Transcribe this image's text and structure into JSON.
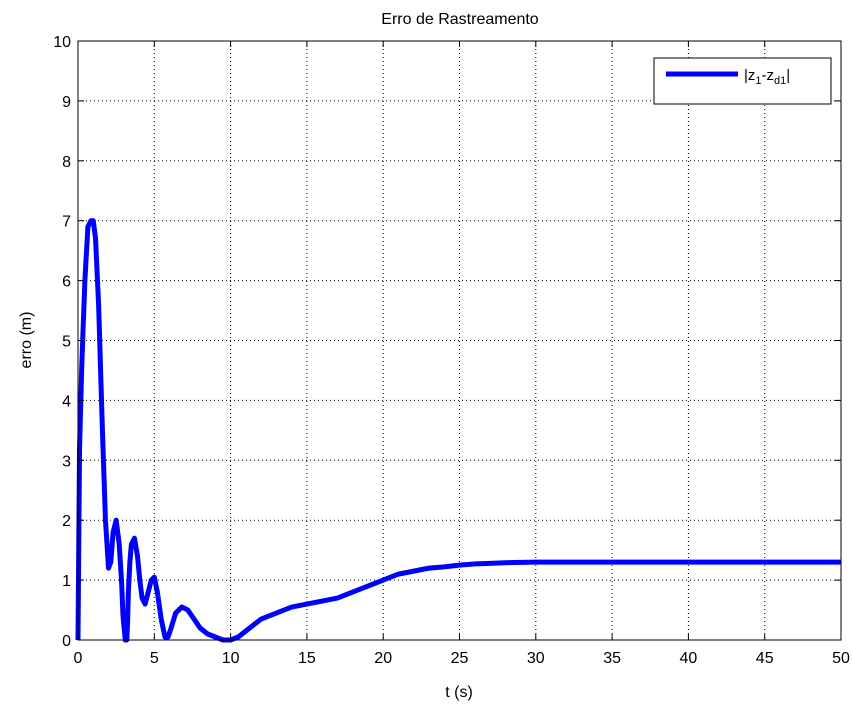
{
  "chart_data": {
    "type": "line",
    "title": "Erro de Rastreamento",
    "xlabel": "t (s)",
    "ylabel": "erro (m)",
    "xlim": [
      0,
      50
    ],
    "ylim": [
      0,
      10
    ],
    "xticks": [
      0,
      5,
      10,
      15,
      20,
      25,
      30,
      35,
      40,
      45,
      50
    ],
    "yticks": [
      0,
      1,
      2,
      3,
      4,
      5,
      6,
      7,
      8,
      9,
      10
    ],
    "grid": true,
    "legend_position": "top-right",
    "series": [
      {
        "name": "|z1-zd1|",
        "label_parts": {
          "main1": "z",
          "sub1": "1",
          "dash": "-",
          "main2": "z",
          "sub2": "d1"
        },
        "color": "#0000ff",
        "x": [
          0,
          0.1,
          0.25,
          0.45,
          0.65,
          0.85,
          1.0,
          1.15,
          1.35,
          1.6,
          1.8,
          2.0,
          2.15,
          2.3,
          2.5,
          2.7,
          2.85,
          2.95,
          3.1,
          3.2,
          3.25,
          3.3,
          3.4,
          3.5,
          3.7,
          3.9,
          4.05,
          4.2,
          4.4,
          4.6,
          4.8,
          5.0,
          5.2,
          5.45,
          5.7,
          5.9,
          6.1,
          6.4,
          6.8,
          7.2,
          7.6,
          8.0,
          8.5,
          9.0,
          9.5,
          10.0,
          10.5,
          11.0,
          11.5,
          12.0,
          13.0,
          14.0,
          15.0,
          16.0,
          17.0,
          18.0,
          19.0,
          20.0,
          21.0,
          22.0,
          23.0,
          24.0,
          25.0,
          26.0,
          27.0,
          28.0,
          30.0,
          35.0,
          40.0,
          45.0,
          50.0
        ],
        "y": [
          0,
          3.2,
          4.6,
          6.0,
          6.9,
          7.0,
          7.0,
          6.7,
          5.6,
          3.5,
          2.0,
          1.2,
          1.3,
          1.8,
          2.0,
          1.6,
          1.0,
          0.4,
          0,
          0,
          0.3,
          0.8,
          1.3,
          1.6,
          1.7,
          1.4,
          1.0,
          0.7,
          0.6,
          0.8,
          1.0,
          1.05,
          0.8,
          0.35,
          0.05,
          0.05,
          0.2,
          0.45,
          0.55,
          0.5,
          0.35,
          0.2,
          0.1,
          0.05,
          0.0,
          0.0,
          0.05,
          0.15,
          0.25,
          0.35,
          0.45,
          0.55,
          0.6,
          0.65,
          0.7,
          0.8,
          0.9,
          1.0,
          1.1,
          1.15,
          1.2,
          1.22,
          1.25,
          1.27,
          1.28,
          1.29,
          1.3,
          1.3,
          1.3,
          1.3,
          1.3
        ]
      }
    ]
  }
}
